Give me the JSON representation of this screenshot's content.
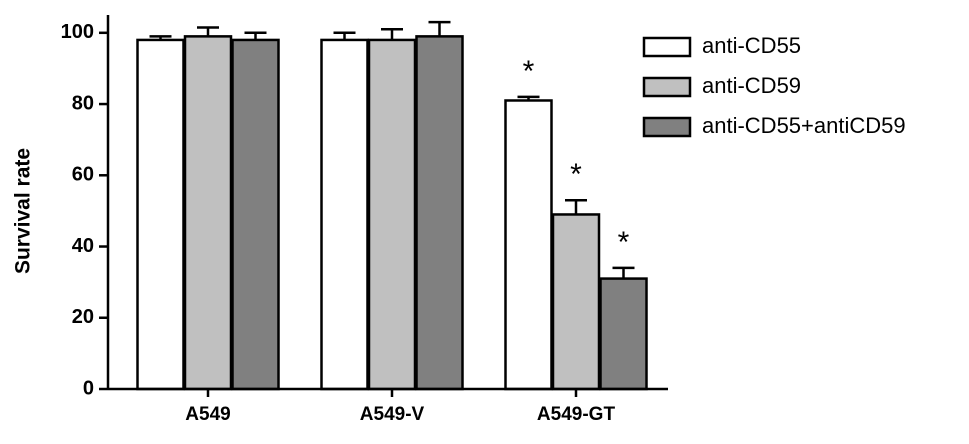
{
  "chart_data": {
    "type": "bar",
    "y_label": "Survival rate",
    "categories": [
      "A549",
      "A549-V",
      "A549-GT"
    ],
    "series": [
      {
        "name": "anti-CD55",
        "color": "#ffffff",
        "values": [
          98,
          98,
          81
        ],
        "errors": [
          1,
          2,
          1
        ],
        "annotations": [
          null,
          null,
          "*"
        ]
      },
      {
        "name": "anti-CD59",
        "color": "#c0c0c0",
        "values": [
          99,
          98,
          49
        ],
        "errors": [
          2.5,
          3,
          4
        ],
        "annotations": [
          null,
          null,
          "*"
        ]
      },
      {
        "name": "anti-CD55+antiCD59",
        "color": "#808080",
        "values": [
          98,
          99,
          31
        ],
        "errors": [
          2,
          4,
          3
        ],
        "annotations": [
          null,
          null,
          "*"
        ]
      }
    ],
    "ylim": [
      0,
      105
    ],
    "yticks": [
      0,
      20,
      40,
      60,
      80,
      100
    ],
    "legend": "right"
  }
}
